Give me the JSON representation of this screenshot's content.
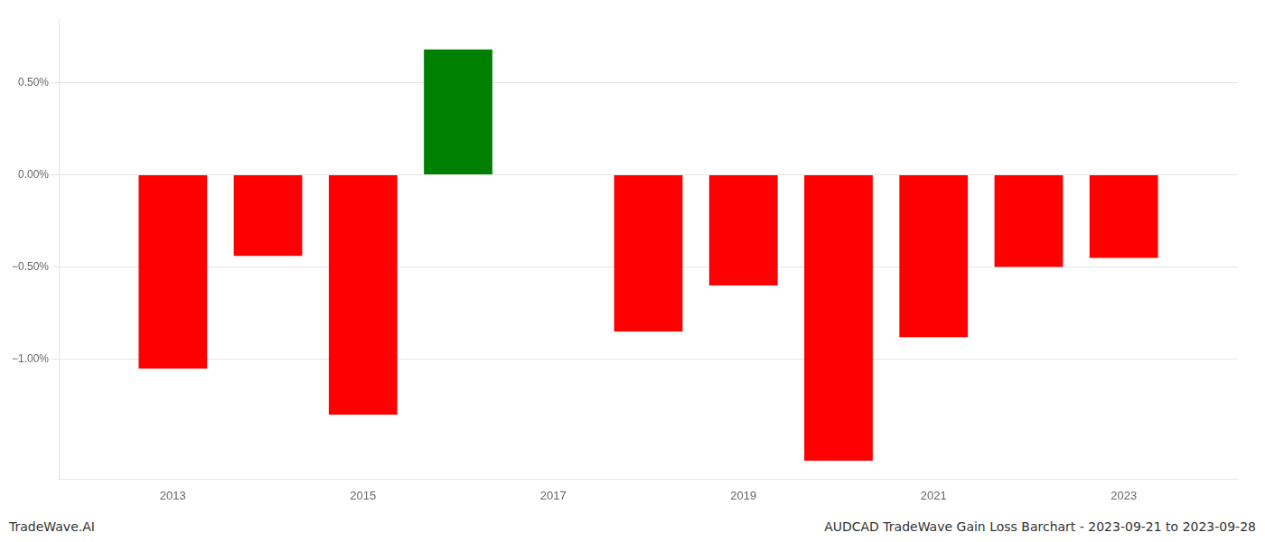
{
  "chart_data": {
    "type": "bar",
    "x": [
      2013,
      2014,
      2015,
      2016,
      2018,
      2019,
      2020,
      2021,
      2022,
      2023
    ],
    "values": [
      -1.05,
      -0.44,
      -1.3,
      0.68,
      -0.85,
      -0.6,
      -1.55,
      -0.88,
      -0.5,
      -0.45
    ],
    "colors": [
      "#ff0000",
      "#ff0000",
      "#ff0000",
      "#008000",
      "#ff0000",
      "#ff0000",
      "#ff0000",
      "#ff0000",
      "#ff0000",
      "#ff0000"
    ],
    "xlim": [
      2011.8,
      2024.2
    ],
    "xticks": [
      2013,
      2015,
      2017,
      2019,
      2021,
      2023
    ],
    "ylim": [
      -1.65,
      0.85
    ],
    "yticks": [
      {
        "value": -1.0,
        "label": "−1.00%"
      },
      {
        "value": -0.5,
        "label": "−0.50%"
      },
      {
        "value": 0.0,
        "label": "0.00%"
      },
      {
        "value": 0.5,
        "label": "0.50%"
      }
    ],
    "grid": "y",
    "annotations": [
      "TradeWave.AI",
      "AUDCAD TradeWave Gain Loss Barchart - 2023-09-21 to 2023-09-28"
    ]
  }
}
